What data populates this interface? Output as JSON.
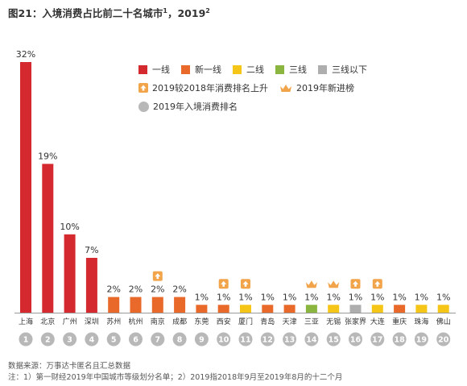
{
  "title": {
    "main": "图21：入境消费占比前二十名城市",
    "sup1": "1",
    "sep": "，2019",
    "sup2": "2"
  },
  "colors": {
    "tier1": "#d42a2f",
    "new_tier1": "#e8692a",
    "tier2": "#f5c518",
    "tier3": "#8ab53f",
    "tier3_below": "#aeaeae",
    "rank_circle": "#b8b8b8",
    "marker": "#f2a44a"
  },
  "legend": {
    "tiers": [
      {
        "label": "一线",
        "color_key": "tier1"
      },
      {
        "label": "新一线",
        "color_key": "new_tier1"
      },
      {
        "label": "二线",
        "color_key": "tier2"
      },
      {
        "label": "三线",
        "color_key": "tier3"
      },
      {
        "label": "三线以下",
        "color_key": "tier3_below"
      }
    ],
    "up_label": "2019较2018年消费排名上升",
    "new_label": "2019年新进榜",
    "rank_label": "2019年入境消费排名"
  },
  "chart_data": {
    "type": "bar",
    "categories": [
      "上海",
      "北京",
      "广州",
      "深圳",
      "苏州",
      "杭州",
      "南京",
      "成都",
      "东莞",
      "西安",
      "厦门",
      "青岛",
      "天津",
      "三亚",
      "无锡",
      "张家界",
      "大连",
      "重庆",
      "珠海",
      "佛山"
    ],
    "values": [
      32,
      19,
      10,
      7,
      2,
      2,
      2,
      2,
      1,
      1,
      1,
      1,
      1,
      1,
      1,
      1,
      1,
      1,
      1,
      1
    ],
    "value_labels": [
      "32%",
      "19%",
      "10%",
      "7%",
      "2%",
      "2%",
      "2%",
      "2%",
      "1%",
      "1%",
      "1%",
      "1%",
      "1%",
      "1%",
      "1%",
      "1%",
      "1%",
      "1%",
      "1%",
      "1%"
    ],
    "tiers": [
      "tier1",
      "tier1",
      "tier1",
      "tier1",
      "new_tier1",
      "new_tier1",
      "new_tier1",
      "new_tier1",
      "new_tier1",
      "new_tier1",
      "tier2",
      "new_tier1",
      "new_tier1",
      "tier3",
      "tier2",
      "tier3_below",
      "tier2",
      "new_tier1",
      "tier2",
      "tier2"
    ],
    "ranks": [
      "1",
      "2",
      "3",
      "4",
      "5",
      "6",
      "7",
      "8",
      "9",
      "10",
      "11",
      "12",
      "13",
      "14",
      "15",
      "16",
      "17",
      "18",
      "19",
      "20"
    ],
    "markers": [
      "",
      "",
      "",
      "",
      "",
      "",
      "up",
      "",
      "",
      "up",
      "up",
      "",
      "",
      "new",
      "new",
      "up",
      "up",
      "",
      "",
      ""
    ],
    "unit": "%",
    "ylim": [
      0,
      32
    ]
  },
  "footer": {
    "source": "数据来源：万事达卡匿名且汇总数据",
    "note": "注：1）第一财经2019年中国城市等级划分名单；2）2019指2018年9月至2019年8月的十二个月"
  }
}
